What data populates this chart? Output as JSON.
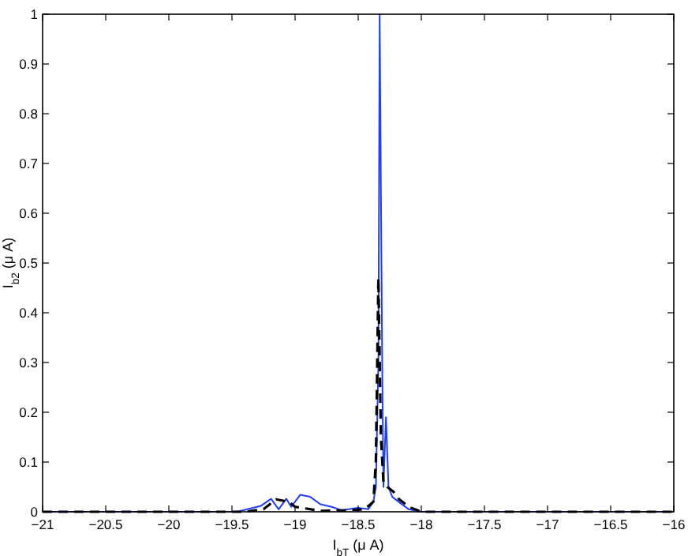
{
  "chart_data": {
    "type": "line",
    "xlabel": "I$_{bT}$ (μ A)",
    "ylabel": "I$_{b2}$ (μ A)",
    "xlim": [
      -21,
      -16
    ],
    "ylim": [
      0,
      1
    ],
    "xticks": [
      -21,
      -20.5,
      -20,
      -19.5,
      -19,
      -18.5,
      -18,
      -17.5,
      -17,
      -16.5,
      -16
    ],
    "yticks": [
      0,
      0.1,
      0.2,
      0.3,
      0.4,
      0.5,
      0.6,
      0.7,
      0.8,
      0.9,
      1
    ],
    "grid": false,
    "series": [
      {
        "color": "#1f3fff",
        "line_style": "solid",
        "x": [
          -21,
          -19.5,
          -19.46,
          -19.27,
          -19.19,
          -19.13,
          -19.07,
          -19.03,
          -18.96,
          -18.88,
          -18.8,
          -18.71,
          -18.63,
          -18.5,
          -18.42,
          -18.38,
          -18.36,
          -18.34,
          -18.33,
          -18.31,
          -18.3,
          -18.28,
          -18.26,
          -18.23,
          -18.18,
          -18.1,
          -18,
          -16
        ],
        "values": [
          0,
          0,
          0,
          0.012,
          0.026,
          0.005,
          0.026,
          0.01,
          0.034,
          0.03,
          0.015,
          0.01,
          0.003,
          0.008,
          0.005,
          0.02,
          0.05,
          0.3,
          1,
          0.3,
          0.05,
          0.19,
          0.05,
          0.03,
          0.02,
          0.005,
          0,
          0
        ]
      },
      {
        "color": "#000000",
        "line_style": "dashed",
        "x": [
          -21,
          -19.4,
          -19.25,
          -19.15,
          -19.05,
          -19.0,
          -18.8,
          -18.6,
          -18.45,
          -18.38,
          -18.36,
          -18.34,
          -18.32,
          -18.3,
          -18.27,
          -18.22,
          -18.18,
          -18.1,
          -18.0,
          -16
        ],
        "values": [
          0,
          0,
          0.005,
          0.025,
          0.02,
          0.01,
          0.002,
          0.003,
          0.005,
          0.02,
          0.1,
          0.47,
          0.15,
          0.06,
          0.05,
          0.04,
          0.026,
          0.01,
          0,
          0
        ]
      }
    ]
  }
}
